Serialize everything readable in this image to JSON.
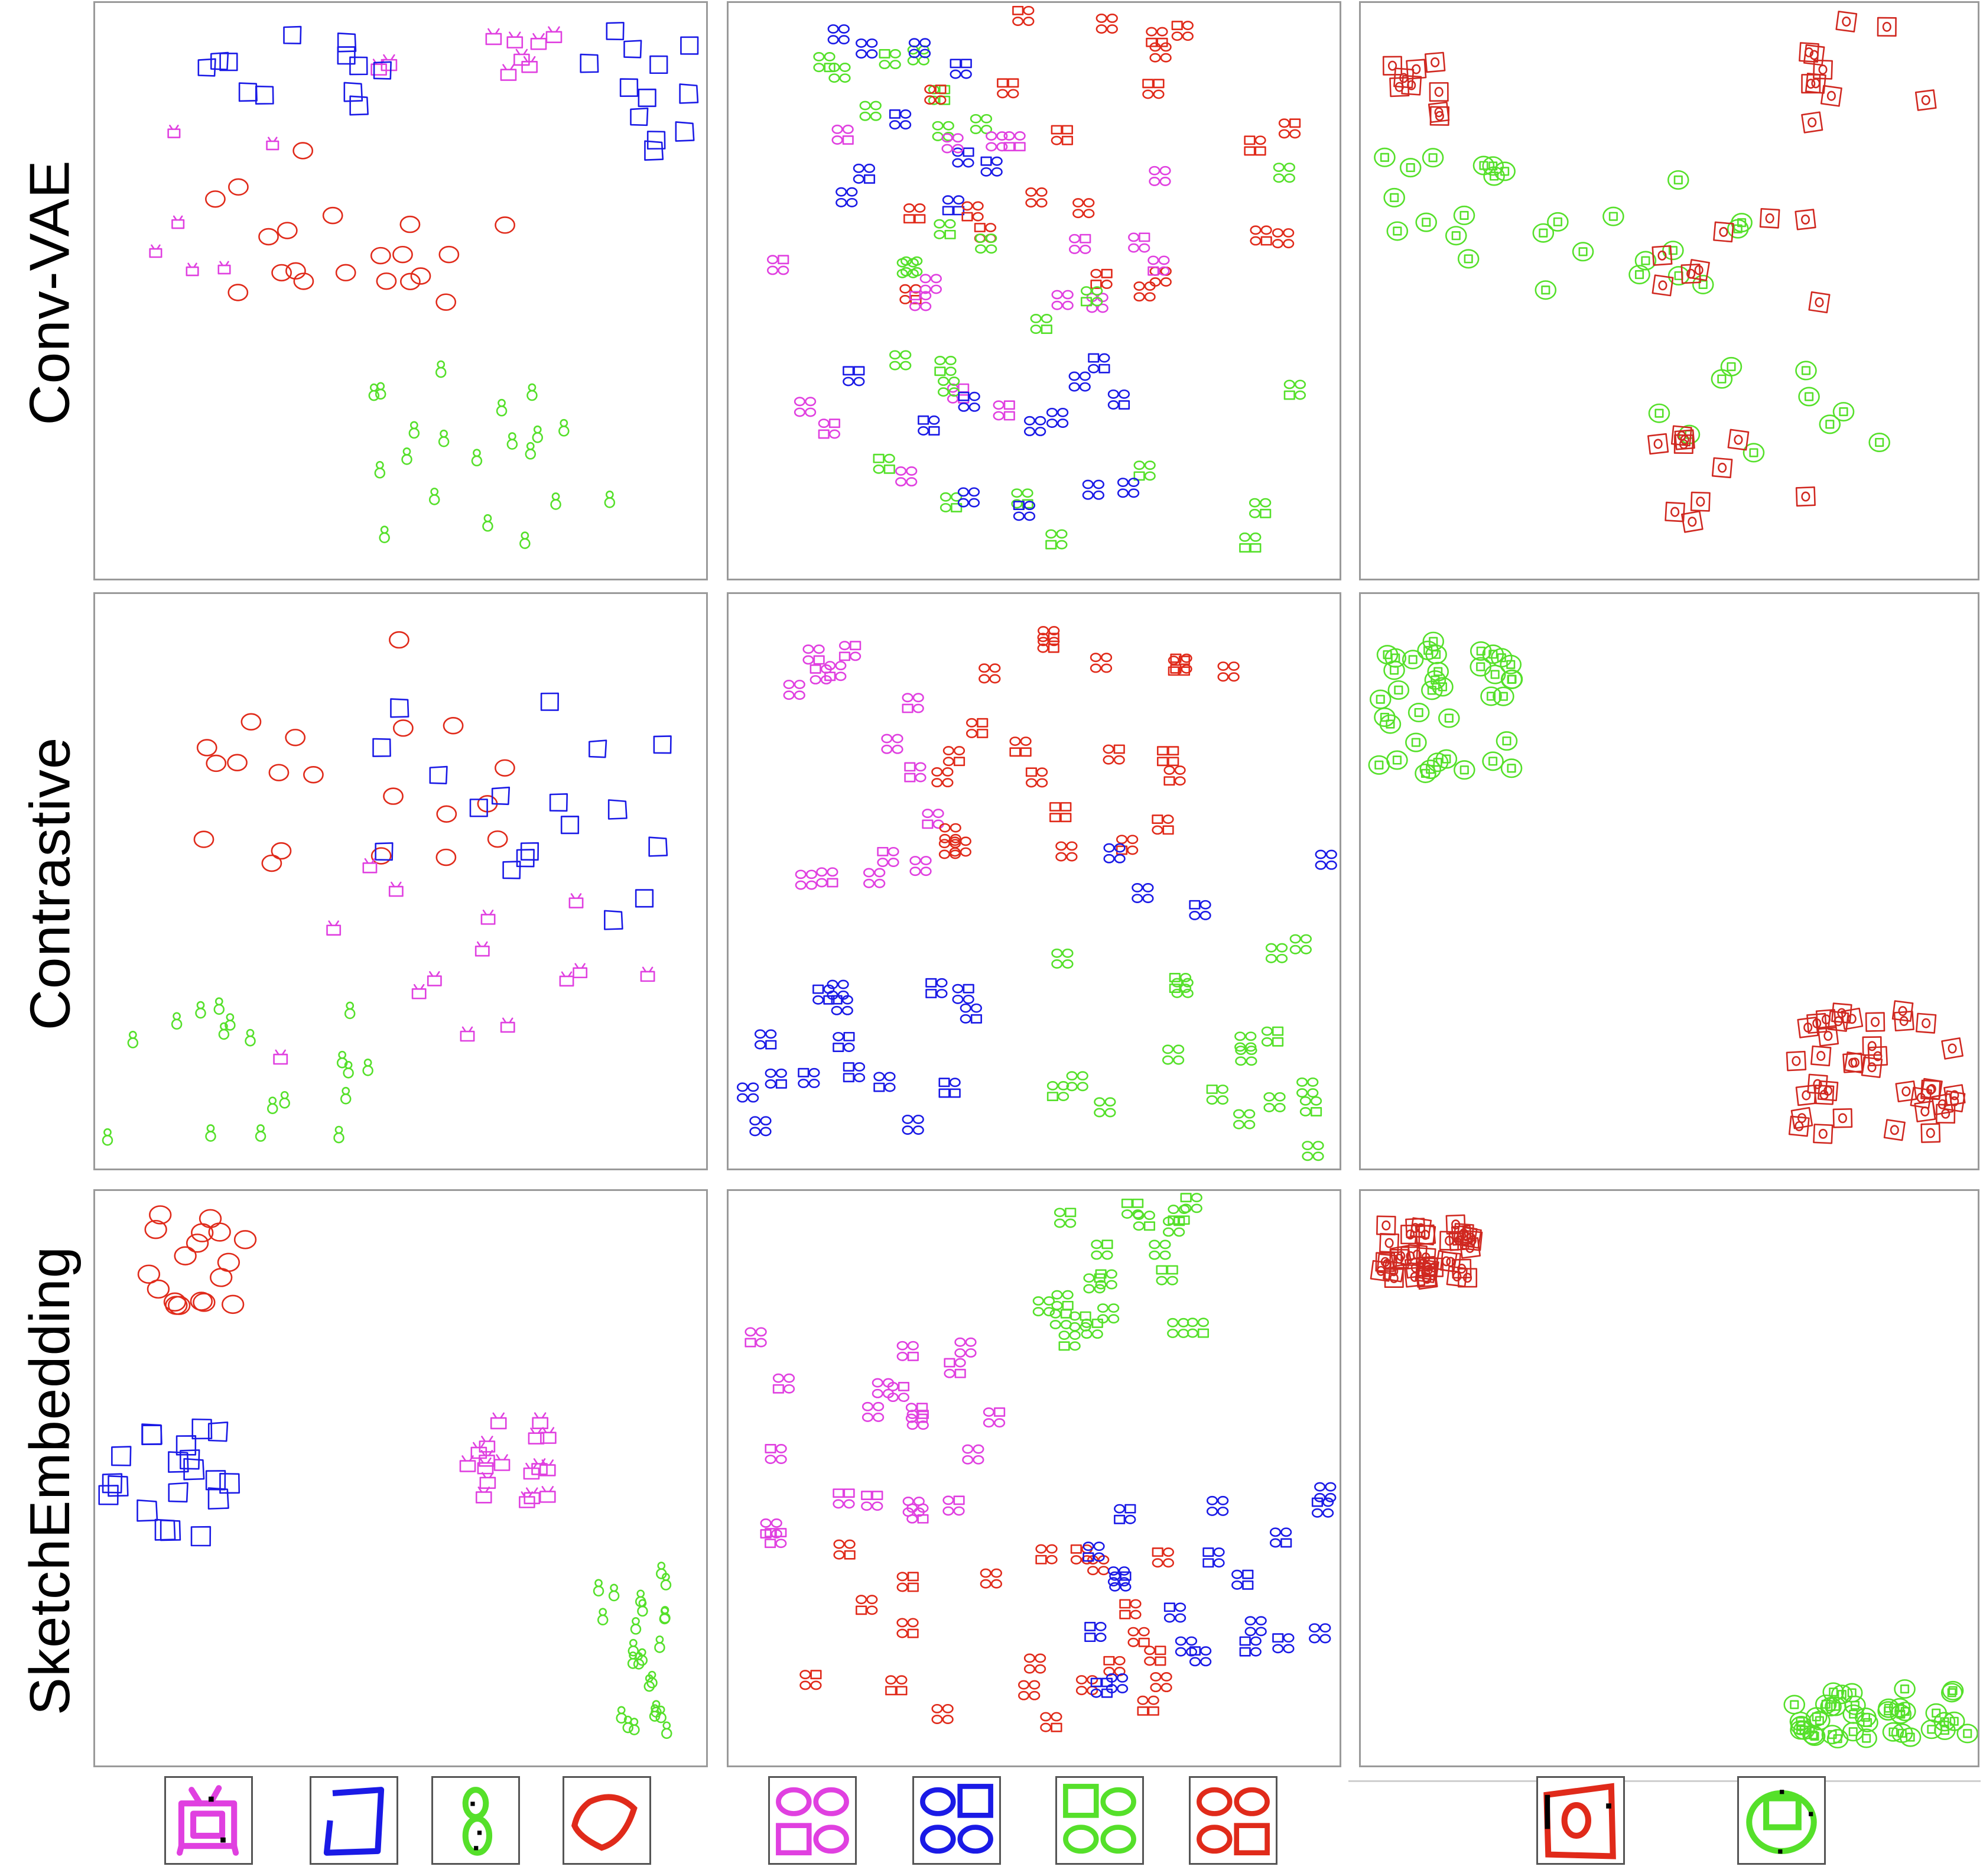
{
  "rows": [
    {
      "label": "Conv-VAE"
    },
    {
      "label": "Contrastive"
    },
    {
      "label": "SketchEmbedding"
    }
  ],
  "colors": {
    "magenta": "#e040e0",
    "blue": "#1a1ae6",
    "green": "#55e02a",
    "red": "#e02a1a",
    "darkred": "#d02820"
  },
  "icons": {
    "magenta": "tv-sketch",
    "blue": "square-sketch",
    "green": "snowman-sketch",
    "red": "circle-sketch"
  },
  "grid_icons": {
    "magenta": "four-shape-grid-sketch",
    "blue": "four-shape-grid-sketch",
    "green": "four-shape-grid-sketch",
    "red": "four-shape-grid-sketch"
  },
  "circle_square_icons": {
    "red": "circle-in-square-sketch",
    "green": "square-in-circle-sketch"
  },
  "legend": {
    "col1": [
      "magenta",
      "blue",
      "green",
      "red"
    ],
    "col2": [
      "magenta",
      "blue",
      "green",
      "red"
    ],
    "col3": [
      "red",
      "green"
    ]
  }
}
